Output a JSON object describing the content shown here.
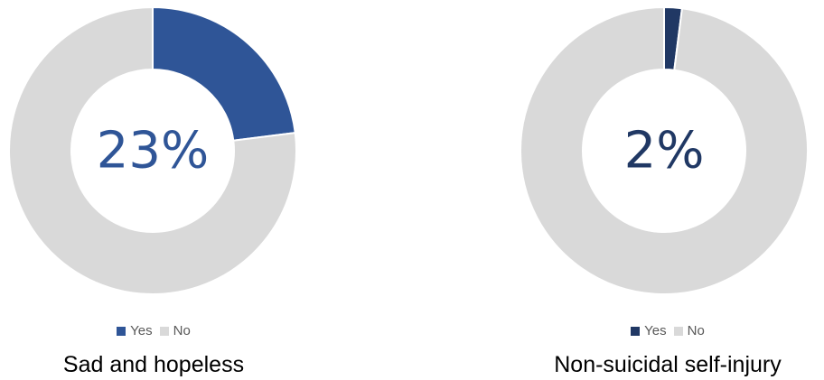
{
  "chart_data": [
    {
      "type": "pie",
      "variant": "donut",
      "title": "Sad and hopeless",
      "center_label": "23%",
      "categories": [
        "Yes",
        "No"
      ],
      "values": [
        23,
        77
      ],
      "colors": {
        "Yes": "#2F5597",
        "No": "#D9D9D9"
      },
      "center_label_color": "#2F5597",
      "legend": {
        "position": "bottom",
        "entries": [
          "Yes",
          "No"
        ]
      }
    },
    {
      "type": "pie",
      "variant": "donut",
      "title": "Non-suicidal self-injury",
      "center_label": "2%",
      "categories": [
        "Yes",
        "No"
      ],
      "values": [
        2,
        98
      ],
      "colors": {
        "Yes": "#203864",
        "No": "#D9D9D9"
      },
      "center_label_color": "#203864",
      "legend": {
        "position": "bottom",
        "entries": [
          "Yes",
          "No"
        ]
      }
    }
  ]
}
